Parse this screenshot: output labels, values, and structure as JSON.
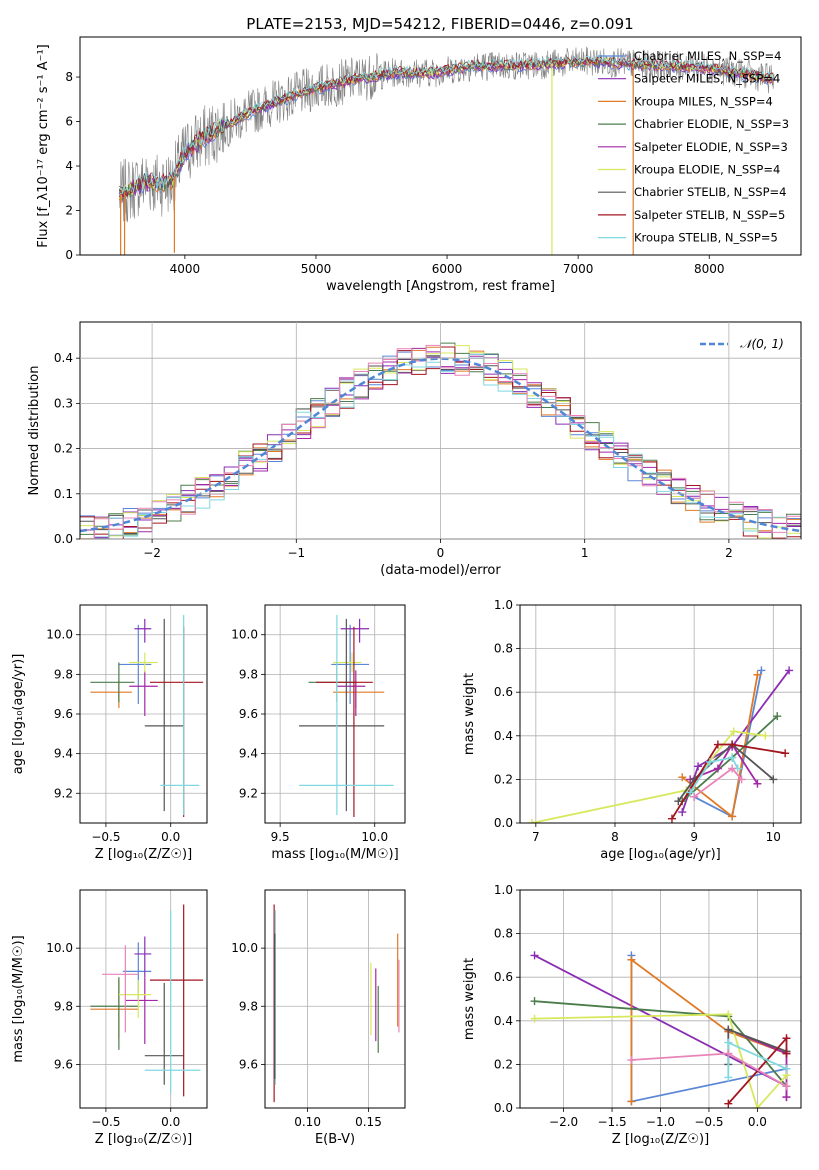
{
  "title": "PLATE=2153, MJD=54212, FIBERID=0446, z=0.091",
  "colors": {
    "Chabrier MILES": "#5b87d6",
    "Salpeter MILES": "#8b2db3",
    "Kroupa MILES": "#e07a26",
    "Chabrier ELODIE": "#4b7d4b",
    "Salpeter ELODIE": "#a428a6",
    "Kroupa ELODIE": "#d7e85c",
    "Chabrier STELIB": "#555555",
    "Salpeter STELIB": "#a31621",
    "Kroupa STELIB": "#7fd8e0",
    "data": "#808080",
    "pink": "#e884b8",
    "normal": "#4f86d6"
  },
  "chart_data": [
    {
      "id": "spectrum",
      "type": "line",
      "title": "PLATE=2153, MJD=54212, FIBERID=0446, z=0.091",
      "xlabel": "wavelength [Angstrom, rest frame]",
      "ylabel": "Flux [f_λ10⁻¹⁷ erg cm⁻² s⁻¹ A⁻¹]",
      "xlim": [
        3200,
        8700
      ],
      "ylim": [
        0,
        9.8
      ],
      "xticks": [
        "4000",
        "5000",
        "6000",
        "7000",
        "8000"
      ],
      "yticks": [
        "0",
        "2",
        "4",
        "6",
        "8"
      ],
      "grid": false,
      "legend": [
        "Chabrier MILES, N_SSP=4",
        "Salpeter MILES, N_SSP=4",
        "Kroupa MILES, N_SSP=4",
        "Chabrier ELODIE, N_SSP=3",
        "Salpeter ELODIE, N_SSP=3",
        "Kroupa ELODIE, N_SSP=4",
        "Chabrier STELIB, N_SSP=4",
        "Salpeter STELIB, N_SSP=5",
        "Kroupa STELIB, N_SSP=5"
      ],
      "legend_placement": "right",
      "continuum": {
        "x": [
          3500,
          3600,
          3700,
          3800,
          3900,
          4000,
          4100,
          4300,
          4500,
          4700,
          5000,
          5300,
          5600,
          5900,
          6200,
          6500,
          6800,
          7100,
          7400,
          7700,
          8000,
          8300,
          8500
        ],
        "y": [
          2.7,
          3.0,
          3.3,
          3.2,
          3.3,
          4.6,
          5.1,
          5.8,
          6.4,
          6.9,
          7.5,
          7.9,
          8.2,
          8.2,
          8.5,
          8.5,
          8.6,
          8.7,
          8.6,
          8.5,
          8.4,
          8.1,
          7.9
        ]
      },
      "spikes": [
        {
          "x": 3510,
          "y": 0
        },
        {
          "x": 3540,
          "y": 0
        },
        {
          "x": 3920,
          "y": 0.1
        },
        {
          "x": 6800,
          "y": 0
        },
        {
          "x": 7420,
          "y": 0
        }
      ]
    },
    {
      "id": "residuals",
      "type": "area",
      "xlabel": "(data-model)/error",
      "ylabel": "Normed distribution",
      "xlim": [
        -2.5,
        2.5
      ],
      "ylim": [
        0,
        0.48
      ],
      "xticks": [
        "−2",
        "−1",
        "0",
        "1",
        "2"
      ],
      "yticks": [
        "0.0",
        "0.1",
        "0.2",
        "0.3",
        "0.4"
      ],
      "grid": true,
      "legend": [
        "𝒩(0, 1)"
      ],
      "legend_placement": "top-right",
      "bin_width": 0.1
    },
    {
      "id": "age-vs-Z",
      "type": "scatter",
      "xlabel": "Z [log₁₀(Z/Z☉)]",
      "ylabel": "age  [log₁₀(age/yr)]",
      "xlim": [
        -0.7,
        0.28
      ],
      "ylim": [
        9.05,
        10.15
      ],
      "xticks": [
        "−0.5",
        "0.0"
      ],
      "yticks": [
        "9.2",
        "9.4",
        "9.6",
        "9.8",
        "10.0"
      ],
      "grid": true,
      "points": [
        {
          "series": "Chabrier MILES",
          "x": -0.25,
          "y": 9.85,
          "xerr": [
            0.15,
            0.1
          ],
          "yerr": [
            0.2,
            0.2
          ]
        },
        {
          "series": "Salpeter MILES",
          "x": -0.2,
          "y": 10.03,
          "xerr": [
            0.08,
            0.05
          ],
          "yerr": [
            0.07,
            0.05
          ]
        },
        {
          "series": "Kroupa MILES",
          "x": -0.4,
          "y": 9.71,
          "xerr": [
            0.22,
            0.1
          ],
          "yerr": [
            0.08,
            0.06
          ]
        },
        {
          "series": "Chabrier ELODIE",
          "x": -0.4,
          "y": 9.76,
          "xerr": [
            0.22,
            0.12
          ],
          "yerr": [
            0.1,
            0.1
          ]
        },
        {
          "series": "Salpeter ELODIE",
          "x": -0.2,
          "y": 9.74,
          "xerr": [
            0.12,
            0.1
          ],
          "yerr": [
            0.15,
            0.08
          ]
        },
        {
          "series": "Kroupa ELODIE",
          "x": -0.2,
          "y": 9.86,
          "xerr": [
            0.12,
            0.1
          ],
          "yerr": [
            0.05,
            0.05
          ]
        },
        {
          "series": "Chabrier STELIB",
          "x": -0.05,
          "y": 9.54,
          "xerr": [
            0.15,
            0.15
          ],
          "yerr": [
            0.43,
            0.54
          ]
        },
        {
          "series": "Salpeter STELIB",
          "x": 0.1,
          "y": 9.76,
          "xerr": [
            0.26,
            0.15
          ],
          "yerr": [
            0.68,
            0.28
          ]
        },
        {
          "series": "Kroupa STELIB",
          "x": 0.1,
          "y": 9.24,
          "xerr": [
            0.18,
            0.12
          ],
          "yerr": [
            0.15,
            0.86
          ]
        }
      ]
    },
    {
      "id": "age-vs-mass",
      "type": "scatter",
      "xlabel": "mass [log₁₀(M/M☉)]",
      "ylabel": "",
      "xlim": [
        9.42,
        10.16
      ],
      "ylim": [
        9.05,
        10.15
      ],
      "xticks": [
        "9.5",
        "10.0"
      ],
      "yticks": [
        "9.2",
        "9.4",
        "9.6",
        "9.8",
        "10.0"
      ],
      "grid": true,
      "points": [
        {
          "series": "Chabrier MILES",
          "x": 9.87,
          "y": 9.85,
          "xerr": [
            0.1,
            0.1
          ],
          "yerr": [
            0.2,
            0.2
          ]
        },
        {
          "series": "Salpeter MILES",
          "x": 9.92,
          "y": 10.03,
          "xerr": [
            0.1,
            0.05
          ],
          "yerr": [
            0.07,
            0.05
          ]
        },
        {
          "series": "Kroupa MILES",
          "x": 9.9,
          "y": 9.71,
          "xerr": [
            0.12,
            0.15
          ],
          "yerr": [
            0.08,
            0.06
          ]
        },
        {
          "series": "Chabrier ELODIE",
          "x": 9.8,
          "y": 9.76,
          "xerr": [
            0.15,
            0.1
          ],
          "yerr": [
            0.1,
            0.1
          ]
        },
        {
          "series": "Salpeter ELODIE",
          "x": 9.9,
          "y": 9.74,
          "xerr": [
            0.1,
            0.05
          ],
          "yerr": [
            0.15,
            0.08
          ]
        },
        {
          "series": "Kroupa ELODIE",
          "x": 9.88,
          "y": 9.86,
          "xerr": [
            0.1,
            0.05
          ],
          "yerr": [
            0.05,
            0.05
          ]
        },
        {
          "series": "Chabrier STELIB",
          "x": 9.85,
          "y": 9.54,
          "xerr": [
            0.25,
            0.2
          ],
          "yerr": [
            0.43,
            0.54
          ]
        },
        {
          "series": "Salpeter STELIB",
          "x": 9.89,
          "y": 9.76,
          "xerr": [
            0.2,
            0.1
          ],
          "yerr": [
            0.68,
            0.28
          ]
        },
        {
          "series": "Kroupa STELIB",
          "x": 9.8,
          "y": 9.24,
          "xerr": [
            0.2,
            0.3
          ],
          "yerr": [
            0.15,
            0.86
          ]
        }
      ]
    },
    {
      "id": "weight-vs-age",
      "type": "line",
      "xlabel": "age  [log₁₀(age/yr)]",
      "ylabel": "mass weight",
      "xlim": [
        6.8,
        10.35
      ],
      "ylim": [
        0,
        1
      ],
      "xticks": [
        "7",
        "8",
        "9",
        "10"
      ],
      "yticks": [
        "0.0",
        "0.2",
        "0.4",
        "0.6",
        "0.8",
        "1.0"
      ],
      "grid": true,
      "series": [
        {
          "name": "Chabrier MILES",
          "x": [
            9.0,
            9.48,
            9.85
          ],
          "y": [
            0.12,
            0.03,
            0.7
          ]
        },
        {
          "name": "Salpeter MILES",
          "x": [
            8.85,
            9.05,
            9.48,
            10.2
          ],
          "y": [
            0.05,
            0.26,
            0.35,
            0.7
          ]
        },
        {
          "name": "Kroupa MILES",
          "x": [
            8.85,
            9.48,
            9.8
          ],
          "y": [
            0.21,
            0.03,
            0.68
          ]
        },
        {
          "name": "Chabrier ELODIE",
          "x": [
            8.85,
            9.48,
            10.05
          ],
          "y": [
            0.1,
            0.3,
            0.49
          ]
        },
        {
          "name": "Salpeter ELODIE",
          "x": [
            8.95,
            9.3,
            9.48,
            9.8
          ],
          "y": [
            0.2,
            0.25,
            0.36,
            0.18
          ]
        },
        {
          "name": "Kroupa ELODIE",
          "x": [
            6.95,
            8.9,
            9.5,
            9.9
          ],
          "y": [
            0.0,
            0.15,
            0.42,
            0.4
          ]
        },
        {
          "name": "Chabrier STELIB",
          "x": [
            8.8,
            9.0,
            9.48,
            10.0
          ],
          "y": [
            0.1,
            0.2,
            0.36,
            0.2
          ]
        },
        {
          "name": "Salpeter STELIB",
          "x": [
            8.72,
            9.3,
            9.48,
            10.15
          ],
          "y": [
            0.02,
            0.36,
            0.36,
            0.32
          ]
        },
        {
          "name": "Kroupa STELIB",
          "x": [
            8.95,
            9.2,
            9.48,
            9.55
          ],
          "y": [
            0.14,
            0.28,
            0.3,
            0.25
          ]
        },
        {
          "name": "pink",
          "x": [
            9.0,
            9.48,
            9.6
          ],
          "y": [
            0.12,
            0.25,
            0.2
          ]
        }
      ]
    },
    {
      "id": "mass-vs-Z",
      "type": "scatter",
      "xlabel": "Z [log₁₀(Z/Z☉)]",
      "ylabel": "mass [log₁₀(M/M☉)]",
      "xlim": [
        -0.7,
        0.28
      ],
      "ylim": [
        9.45,
        10.2
      ],
      "xticks": [
        "−0.5",
        "0.0"
      ],
      "yticks": [
        "9.6",
        "9.8",
        "10.0"
      ],
      "grid": true,
      "points": [
        {
          "series": "Chabrier MILES",
          "x": -0.25,
          "y": 9.92,
          "xerr": [
            0.12,
            0.1
          ],
          "yerr": [
            0.1,
            0.1
          ]
        },
        {
          "series": "Salpeter MILES",
          "x": -0.2,
          "y": 9.98,
          "xerr": [
            0.08,
            0.05
          ],
          "yerr": [
            0.08,
            0.06
          ]
        },
        {
          "series": "Kroupa MILES",
          "x": -0.4,
          "y": 9.79,
          "xerr": [
            0.22,
            0.15
          ],
          "yerr": [
            0.1,
            0.1
          ]
        },
        {
          "series": "Chabrier ELODIE",
          "x": -0.4,
          "y": 9.8,
          "xerr": [
            0.22,
            0.15
          ],
          "yerr": [
            0.15,
            0.1
          ]
        },
        {
          "series": "Salpeter ELODIE",
          "x": -0.2,
          "y": 9.82,
          "xerr": [
            0.15,
            0.1
          ],
          "yerr": [
            0.15,
            0.08
          ]
        },
        {
          "series": "Kroupa ELODIE",
          "x": -0.25,
          "y": 9.84,
          "xerr": [
            0.15,
            0.1
          ],
          "yerr": [
            0.08,
            0.05
          ]
        },
        {
          "series": "Chabrier STELIB",
          "x": -0.05,
          "y": 9.63,
          "xerr": [
            0.15,
            0.15
          ],
          "yerr": [
            0.1,
            0.25
          ]
        },
        {
          "series": "Salpeter STELIB",
          "x": 0.1,
          "y": 9.89,
          "xerr": [
            0.26,
            0.15
          ],
          "yerr": [
            0.4,
            0.26
          ]
        },
        {
          "series": "Kroupa STELIB",
          "x": 0.0,
          "y": 9.58,
          "xerr": [
            0.2,
            0.23
          ],
          "yerr": [
            0.08,
            0.55
          ]
        },
        {
          "series": "pink",
          "x": -0.35,
          "y": 9.91,
          "xerr": [
            0.18,
            0.1
          ],
          "yerr": [
            0.2,
            0.1
          ]
        }
      ]
    },
    {
      "id": "mass-vs-ebv",
      "type": "scatter",
      "xlabel": "E(B-V)",
      "ylabel": "",
      "xlim": [
        0.065,
        0.18
      ],
      "ylim": [
        9.45,
        10.2
      ],
      "xticks": [
        "0.10",
        "0.15"
      ],
      "yticks": [
        "9.6",
        "9.8",
        "10.0"
      ],
      "grid": true,
      "points": [
        {
          "series": "Salpeter STELIB",
          "x": 0.0725,
          "y": 9.8,
          "yerr": [
            0.33,
            0.35
          ]
        },
        {
          "series": "Kroupa STELIB",
          "x": 0.0735,
          "y": 9.78,
          "yerr": [
            0.25,
            0.35
          ]
        },
        {
          "series": "Chabrier STELIB",
          "x": 0.073,
          "y": 9.7,
          "yerr": [
            0.15,
            0.35
          ]
        },
        {
          "series": "Kroupa ELODIE",
          "x": 0.152,
          "y": 9.85,
          "yerr": [
            0.15,
            0.1
          ]
        },
        {
          "series": "Salpeter ELODIE",
          "x": 0.156,
          "y": 9.83,
          "yerr": [
            0.15,
            0.1
          ]
        },
        {
          "series": "Chabrier ELODIE",
          "x": 0.158,
          "y": 9.79,
          "yerr": [
            0.15,
            0.08
          ]
        },
        {
          "series": "Kroupa MILES",
          "x": 0.174,
          "y": 9.88,
          "yerr": [
            0.15,
            0.17
          ]
        },
        {
          "series": "pink",
          "x": 0.175,
          "y": 9.86,
          "yerr": [
            0.15,
            0.1
          ]
        }
      ]
    },
    {
      "id": "weight-vs-Z",
      "type": "line",
      "xlabel": "Z [log₁₀(Z/Z☉)]",
      "ylabel": "mass weight",
      "xlim": [
        -2.45,
        0.45
      ],
      "ylim": [
        0,
        1
      ],
      "xticks": [
        "−2.0",
        "−1.5",
        "−1.0",
        "−0.5",
        "0.0"
      ],
      "yticks": [
        "0.0",
        "0.2",
        "0.4",
        "0.6",
        "0.8",
        "1.0"
      ],
      "grid": true,
      "series": [
        {
          "name": "Chabrier MILES",
          "x": [
            -1.3,
            -1.3,
            0.3
          ],
          "y": [
            0.7,
            0.03,
            0.18
          ]
        },
        {
          "name": "Salpeter MILES",
          "x": [
            -2.3,
            0.3,
            0.3
          ],
          "y": [
            0.7,
            0.1,
            0.05
          ]
        },
        {
          "name": "Kroupa MILES",
          "x": [
            -1.3,
            -1.3,
            -0.3,
            0.3
          ],
          "y": [
            0.03,
            0.68,
            0.35,
            0.25
          ]
        },
        {
          "name": "Chabrier ELODIE",
          "x": [
            -2.3,
            -0.3,
            0.3
          ],
          "y": [
            0.49,
            0.42,
            0.1
          ]
        },
        {
          "name": "Salpeter ELODIE",
          "x": [
            -0.3,
            0.3,
            0.3
          ],
          "y": [
            0.36,
            0.25,
            0.05
          ]
        },
        {
          "name": "Kroupa ELODIE",
          "x": [
            -2.3,
            -0.3,
            0.0,
            0.3
          ],
          "y": [
            0.41,
            0.43,
            0.0,
            0.15
          ]
        },
        {
          "name": "Chabrier STELIB",
          "x": [
            -0.3,
            -0.3,
            0.3
          ],
          "y": [
            0.2,
            0.36,
            0.26
          ]
        },
        {
          "name": "Salpeter STELIB",
          "x": [
            -0.3,
            0.3,
            0.3
          ],
          "y": [
            0.02,
            0.32,
            0.25
          ]
        },
        {
          "name": "Kroupa STELIB",
          "x": [
            -0.3,
            -0.3,
            0.3
          ],
          "y": [
            0.14,
            0.3,
            0.18
          ]
        },
        {
          "name": "pink",
          "x": [
            -1.3,
            -0.3,
            0.3
          ],
          "y": [
            0.22,
            0.25,
            0.1
          ]
        }
      ]
    }
  ]
}
